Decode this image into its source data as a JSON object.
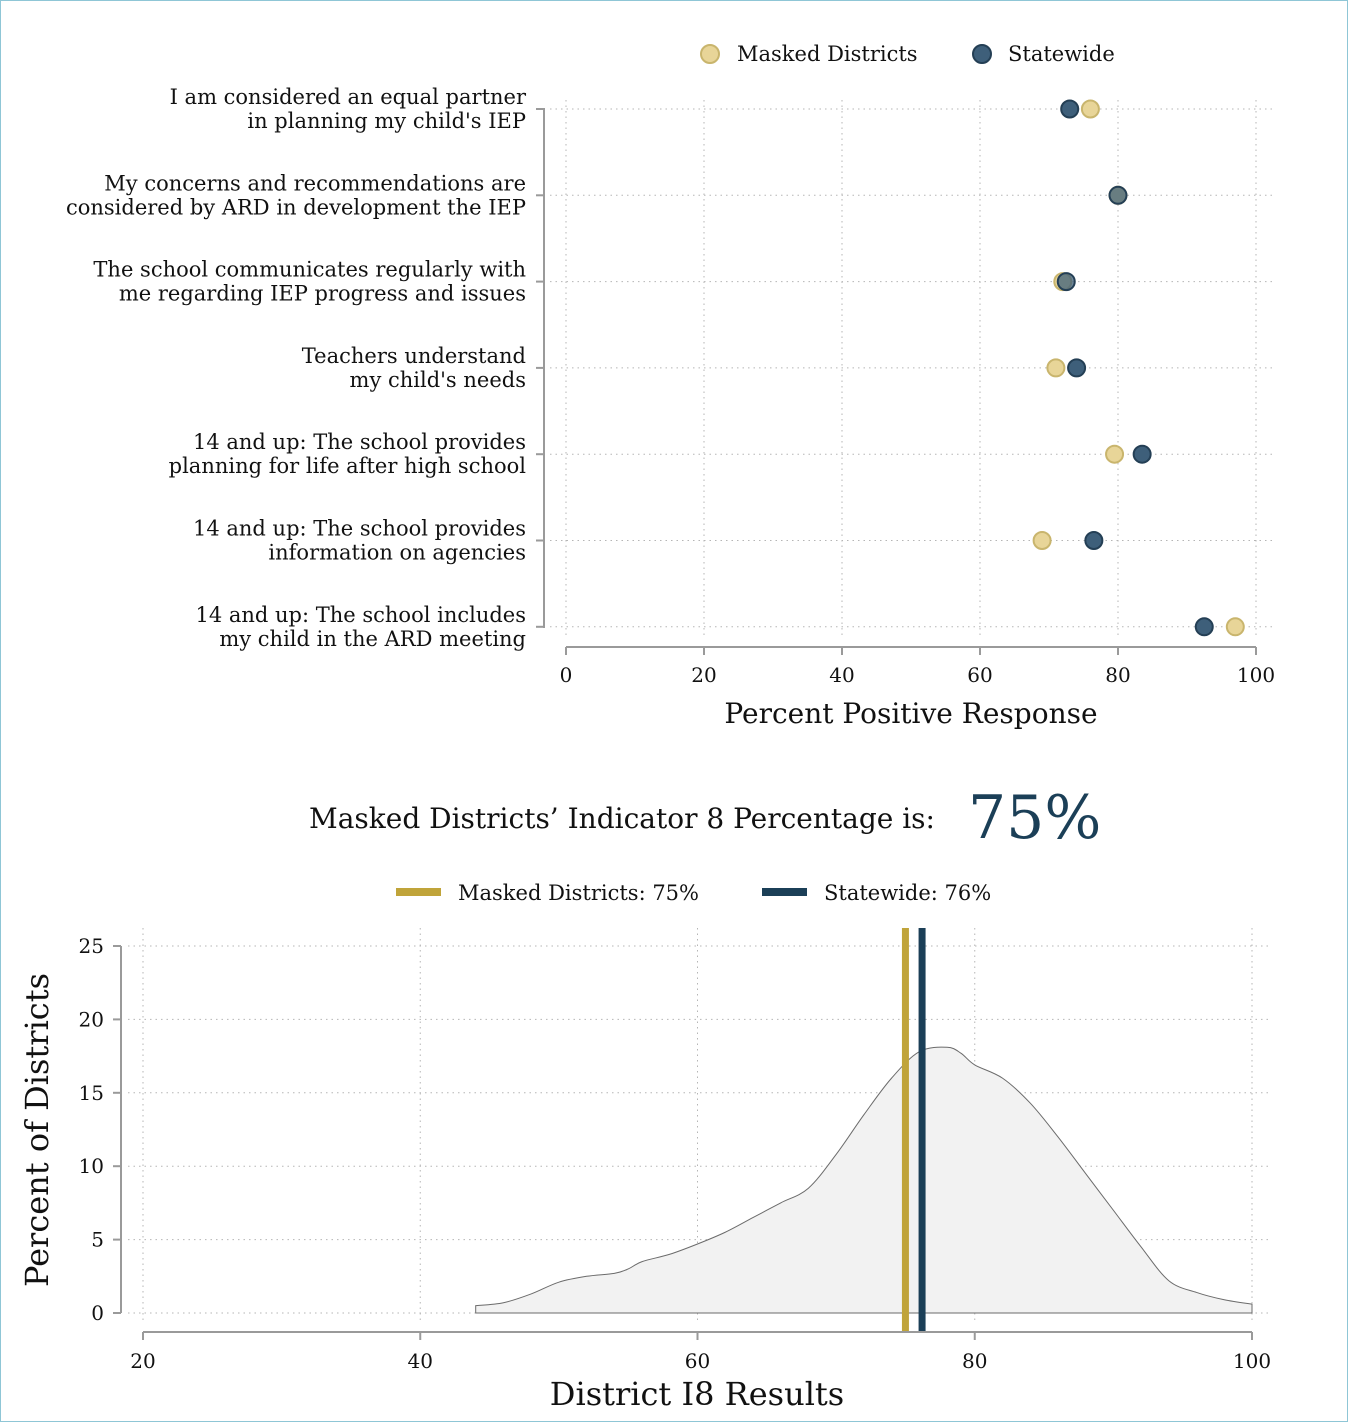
{
  "colors": {
    "masked_fill": "#e8d598",
    "masked_stroke": "#c9b56d",
    "statewide_fill": "#3e5f7a",
    "statewide_stroke": "#243f55",
    "masked_line": "#c0a43a",
    "statewide_line": "#1b3f57",
    "big_number": "#1b3f57",
    "density_fill": "#f2f2f2",
    "density_stroke": "#6b6b6b"
  },
  "indicator": {
    "label": "Masked Districts’ Indicator 8 Percentage is:",
    "value": "75%"
  },
  "chart_data": [
    {
      "type": "scatter",
      "legend": [
        "Masked Districts",
        "Statewide"
      ],
      "legend_position": "top",
      "categories": [
        [
          "I am considered an equal partner",
          "in planning my child's IEP"
        ],
        [
          "My concerns and recommendations are",
          "considered by ARD in development the IEP"
        ],
        [
          "The school communicates regularly with",
          "me regarding IEP progress and issues"
        ],
        [
          "Teachers understand",
          "my child's needs"
        ],
        [
          "14 and up: The school provides",
          "planning for life after high school"
        ],
        [
          "14 and up: The school provides",
          "information on agencies"
        ],
        [
          "14 and up: The school includes",
          "my child in the ARD meeting"
        ]
      ],
      "series": [
        {
          "name": "Masked Districts",
          "values": [
            76,
            80,
            72,
            71,
            79.5,
            69,
            97
          ]
        },
        {
          "name": "Statewide",
          "values": [
            73,
            80,
            72.5,
            74,
            83.5,
            76.5,
            92.5
          ]
        }
      ],
      "xlabel": "Percent Positive Response",
      "xlim": [
        0,
        100
      ],
      "xticks": [
        "0",
        "20",
        "40",
        "60",
        "80",
        "100"
      ],
      "grid": true
    },
    {
      "type": "area",
      "legend": [
        "Masked Districts:  75%",
        "Statewide: 76%"
      ],
      "legend_position": "top",
      "reference_lines": [
        {
          "name": "Masked Districts",
          "x": 75
        },
        {
          "name": "Statewide",
          "x": 76.2
        }
      ],
      "x": [
        44,
        46,
        48,
        50,
        52,
        54,
        55,
        56,
        58,
        60,
        62,
        64,
        66,
        68,
        70,
        72,
        74,
        76,
        78,
        79,
        80,
        82,
        84,
        86,
        88,
        90,
        92,
        94,
        96,
        98,
        100
      ],
      "y": [
        0.5,
        0.7,
        1.3,
        2.1,
        2.5,
        2.7,
        3.0,
        3.5,
        4.0,
        4.7,
        5.5,
        6.5,
        7.5,
        8.5,
        10.8,
        13.5,
        16.0,
        17.8,
        18.1,
        17.7,
        16.9,
        16.0,
        14.3,
        12.0,
        9.5,
        7.0,
        4.5,
        2.2,
        1.4,
        0.9,
        0.6
      ],
      "xlabel": "District I8 Results",
      "ylabel": "Percent of Districts",
      "xlim": [
        20,
        100
      ],
      "ylim": [
        0,
        25
      ],
      "xticks": [
        "20",
        "40",
        "60",
        "80",
        "100"
      ],
      "yticks": [
        "0",
        "5",
        "10",
        "15",
        "20",
        "25"
      ],
      "grid": true
    }
  ]
}
